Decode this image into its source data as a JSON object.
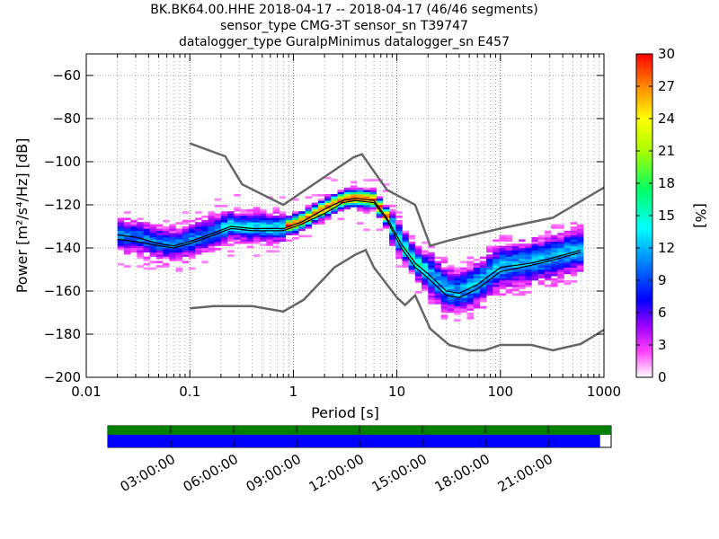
{
  "chart_data": {
    "type": "heatmap",
    "title_lines": [
      "BK.BK64.00.HHE   2018-04-17 -- 2018-04-17  (46/46 segments)",
      "sensor_type CMG-3T sensor_sn T39747",
      "datalogger_type GuralpMinimus datalogger_sn E457"
    ],
    "xlabel": "Period [s]",
    "ylabel": "Power [m²/s⁴/Hz] [dB]",
    "x_scale": "log",
    "xlim": [
      0.01,
      1000
    ],
    "ylim": [
      -200,
      -50
    ],
    "x_tick_labels": [
      "0.01",
      "0.1",
      "1",
      "10",
      "100",
      "1000"
    ],
    "x_tick_values": [
      0.01,
      0.1,
      1,
      10,
      100,
      1000
    ],
    "y_tick_values": [
      -200,
      -180,
      -160,
      -140,
      -120,
      -100,
      -80,
      -60
    ],
    "y_tick_labels": [
      "−200",
      "−180",
      "−160",
      "−140",
      "−120",
      "−100",
      "−80",
      "−60"
    ],
    "grid": true,
    "colorbar": {
      "label": "[%]",
      "range": [
        0,
        30
      ],
      "tick_values": [
        0,
        3,
        6,
        9,
        12,
        15,
        18,
        21,
        24,
        27,
        30
      ],
      "tick_labels": [
        "0",
        "3",
        "6",
        "9",
        "12",
        "15",
        "18",
        "21",
        "24",
        "27",
        "30"
      ]
    },
    "noise_model_high": [
      [
        0.1,
        -91.5
      ],
      [
        0.22,
        -97.5
      ],
      [
        0.32,
        -110.5
      ],
      [
        0.8,
        -120
      ],
      [
        3.8,
        -98
      ],
      [
        4.6,
        -96.5
      ],
      [
        8,
        -113
      ],
      [
        15,
        -120
      ],
      [
        21,
        -139
      ],
      [
        32,
        -136.5
      ],
      [
        100,
        -131
      ],
      [
        320,
        -126
      ],
      [
        1000,
        -112
      ]
    ],
    "noise_model_low": [
      [
        0.1,
        -168
      ],
      [
        0.17,
        -167
      ],
      [
        0.4,
        -167
      ],
      [
        0.8,
        -169.5
      ],
      [
        1.26,
        -164
      ],
      [
        2.5,
        -149
      ],
      [
        4,
        -143
      ],
      [
        5,
        -141
      ],
      [
        6,
        -149
      ],
      [
        10,
        -163
      ],
      [
        12,
        -166.5
      ],
      [
        15,
        -162
      ],
      [
        21,
        -177.5
      ],
      [
        32,
        -185
      ],
      [
        50,
        -187.5
      ],
      [
        70,
        -187.5
      ],
      [
        100,
        -185
      ],
      [
        200,
        -185
      ],
      [
        320,
        -187.5
      ],
      [
        600,
        -184.5
      ],
      [
        1000,
        -178
      ]
    ],
    "mode_line": [
      [
        0.02,
        -134
      ],
      [
        0.03,
        -135
      ],
      [
        0.05,
        -138
      ],
      [
        0.07,
        -139
      ],
      [
        0.1,
        -137
      ],
      [
        0.15,
        -134
      ],
      [
        0.25,
        -130
      ],
      [
        0.4,
        -131
      ],
      [
        0.8,
        -131
      ],
      [
        1.2,
        -128
      ],
      [
        2,
        -122
      ],
      [
        3,
        -118
      ],
      [
        4,
        -117
      ],
      [
        6,
        -118
      ],
      [
        8,
        -126
      ],
      [
        11,
        -138
      ],
      [
        15,
        -147
      ],
      [
        20,
        -152
      ],
      [
        30,
        -160
      ],
      [
        40,
        -161
      ],
      [
        60,
        -157
      ],
      [
        100,
        -149
      ],
      [
        200,
        -147
      ],
      [
        300,
        -145
      ],
      [
        600,
        -141
      ]
    ],
    "mean_line": [
      [
        0.02,
        -136
      ],
      [
        0.03,
        -137
      ],
      [
        0.05,
        -139
      ],
      [
        0.07,
        -140
      ],
      [
        0.1,
        -138
      ],
      [
        0.15,
        -135
      ],
      [
        0.25,
        -131
      ],
      [
        0.4,
        -132
      ],
      [
        0.8,
        -132
      ],
      [
        1.2,
        -129
      ],
      [
        2,
        -124
      ],
      [
        3,
        -119
      ],
      [
        4,
        -118
      ],
      [
        6,
        -119
      ],
      [
        8,
        -127
      ],
      [
        11,
        -140
      ],
      [
        15,
        -149
      ],
      [
        20,
        -154
      ],
      [
        30,
        -162
      ],
      [
        40,
        -163
      ],
      [
        60,
        -159
      ],
      [
        100,
        -151
      ],
      [
        200,
        -148
      ],
      [
        300,
        -146
      ],
      [
        600,
        -142
      ]
    ],
    "timeline": {
      "tick_labels": [
        "03:00:00",
        "06:00:00",
        "09:00:00",
        "12:00:00",
        "15:00:00",
        "18:00:00",
        "21:00:00"
      ],
      "tick_hours": [
        3,
        6,
        9,
        12,
        15,
        18,
        21
      ],
      "range_hours": [
        0,
        24
      ],
      "data_coverage_fraction": 1.0,
      "psd_coverage_fraction": 0.978,
      "colors": {
        "data": "#008000",
        "psd": "#0000ff"
      }
    }
  }
}
